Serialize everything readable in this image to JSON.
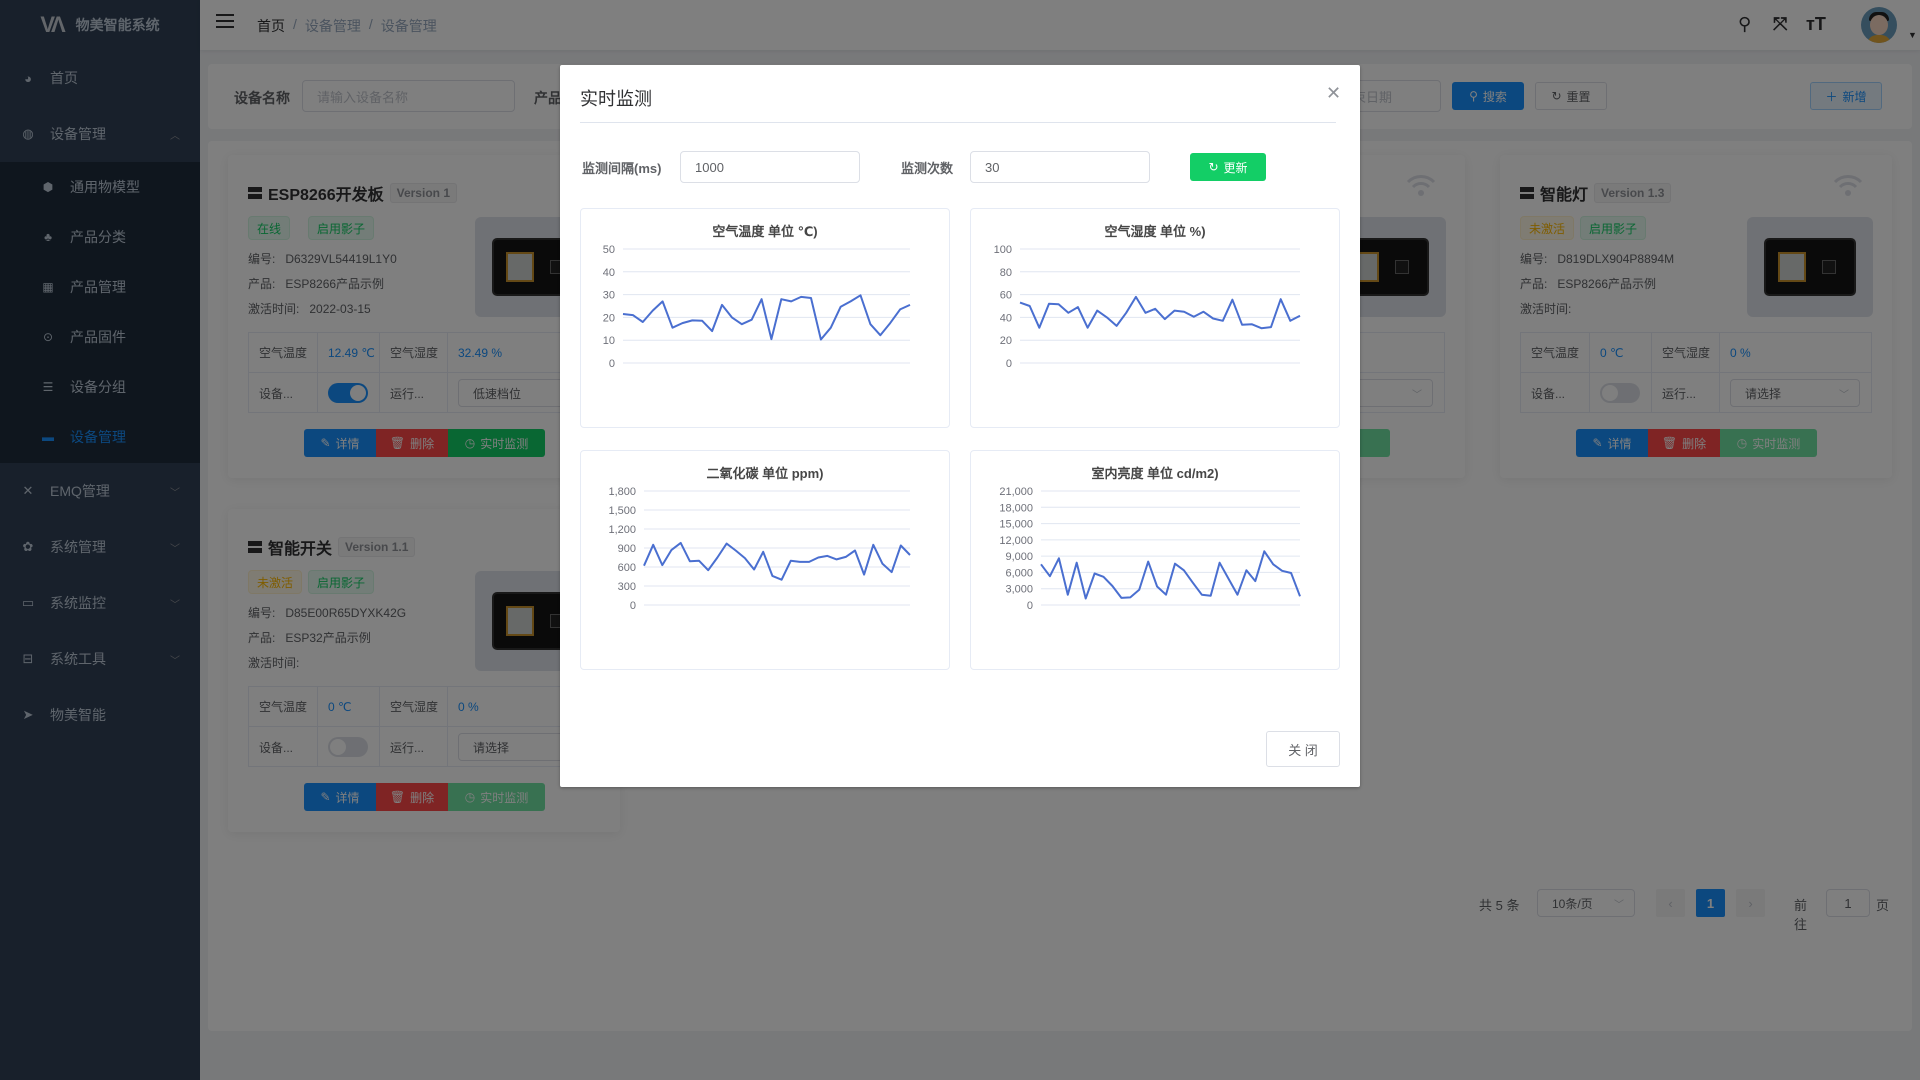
{
  "app": {
    "title": "物美智能系统",
    "logo_text": "WM"
  },
  "sidebar": {
    "items": [
      {
        "label": "首页",
        "icon": "dashboard-icon"
      },
      {
        "label": "设备管理",
        "icon": "iot-icon",
        "expanded": true
      },
      {
        "label": "EMQ管理",
        "icon": "network-icon"
      },
      {
        "label": "系统管理",
        "icon": "gear-icon"
      },
      {
        "label": "系统监控",
        "icon": "monitor-icon"
      },
      {
        "label": "系统工具",
        "icon": "toolbox-icon"
      },
      {
        "label": "物美智能",
        "icon": "paper-plane-icon"
      }
    ],
    "sub_items": [
      {
        "label": "通用物模型",
        "icon": "cube-icon"
      },
      {
        "label": "产品分类",
        "icon": "tree-icon"
      },
      {
        "label": "产品管理",
        "icon": "grid-icon"
      },
      {
        "label": "产品固件",
        "icon": "chip-icon"
      },
      {
        "label": "设备分组",
        "icon": "group-icon"
      },
      {
        "label": "设备管理",
        "icon": "server-icon",
        "active": true
      }
    ]
  },
  "navbar": {
    "breadcrumb": [
      "首页",
      "设备管理",
      "设备管理"
    ],
    "separator": "/"
  },
  "search": {
    "device_name_label": "设备名称",
    "device_name_placeholder": "请输入设备名称",
    "product_label": "产品",
    "date_placeholder_end": "束日期",
    "search_label": "搜索",
    "reset_label": "重置",
    "add_label": "新增"
  },
  "cards": [
    {
      "title": "ESP8266开发板",
      "version": "Version 1",
      "status": "在线",
      "status_color": "green",
      "shadow": "启用影子",
      "serial_label": "编号:",
      "serial": "D6329VL54419L1Y0",
      "product_label": "产品:",
      "product": "ESP8266产品示例",
      "activation_label": "激活时间:",
      "activation": "2022-03-15",
      "temp_label": "空气温度",
      "temp": "12.49 ℃",
      "hum_label": "空气湿度",
      "hum": "32.49 %",
      "switch_label": "设备...",
      "switch_on": true,
      "mode_label": "运行...",
      "mode": "低速档位",
      "detail": "详情",
      "delete": "删除",
      "monitor": "实时监测"
    },
    {
      "title": "",
      "version": "",
      "status": "",
      "status_color": "green",
      "shadow": "",
      "serial_label": "",
      "serial": "",
      "product_label": "",
      "product": "",
      "activation_label": "",
      "activation": "",
      "temp_label": "",
      "temp": "",
      "hum_label": "",
      "hum": "",
      "switch_label": "",
      "switch_on": false,
      "mode_label": "",
      "mode": "",
      "detail": "",
      "delete": "",
      "monitor": ""
    },
    {
      "title": "",
      "version": "",
      "status": "",
      "status_color": "green",
      "shadow": "",
      "serial_label": "",
      "serial": "",
      "product_label": "",
      "product": "",
      "activation_label": "",
      "activation": "",
      "temp_label": "",
      "temp": "",
      "hum_label": "",
      "hum": "",
      "switch_label": "",
      "switch_on": false,
      "mode_label": "",
      "mode": "",
      "detail": "",
      "delete": "",
      "monitor": "测"
    },
    {
      "title": "智能灯",
      "version": "Version 1.3",
      "status": "未激活",
      "status_color": "orange",
      "shadow": "启用影子",
      "serial_label": "编号:",
      "serial": "D819DLX904P8894M",
      "product_label": "产品:",
      "product": "ESP8266产品示例",
      "activation_label": "激活时间:",
      "activation": "",
      "temp_label": "空气温度",
      "temp": "0 ℃",
      "hum_label": "空气湿度",
      "hum": "0 %",
      "switch_label": "设备...",
      "switch_on": false,
      "mode_label": "运行...",
      "mode": "请选择",
      "detail": "详情",
      "delete": "删除",
      "monitor": "实时监测"
    },
    {
      "title": "智能开关",
      "version": "Version 1.1",
      "status": "未激活",
      "status_color": "orange",
      "shadow": "启用影子",
      "serial_label": "编号:",
      "serial": "D85E00R65DYXK42G",
      "product_label": "产品:",
      "product": "ESP32产品示例",
      "activation_label": "激活时间:",
      "activation": "",
      "temp_label": "空气温度",
      "temp": "0 ℃",
      "hum_label": "空气湿度",
      "hum": "0 %",
      "switch_label": "设备...",
      "switch_on": false,
      "mode_label": "运行...",
      "mode": "请选择",
      "detail": "详情",
      "delete": "删除",
      "monitor": "实时监测"
    }
  ],
  "pagination": {
    "total": "共 5 条",
    "page_size": "10条/页",
    "current": "1",
    "goto_label": "前往",
    "goto_value": "1",
    "page_unit": "页"
  },
  "modal": {
    "title": "实时监测",
    "interval_label": "监测间隔(ms)",
    "interval_value": "1000",
    "count_label": "监测次数",
    "count_value": "30",
    "update_label": "更新",
    "close_label": "关 闭"
  },
  "colors": {
    "primary": "#1890ff",
    "success": "#13ce66",
    "danger": "#ff4949",
    "warning": "#ffba00",
    "line": "#4a6fd0",
    "sidebar": "#304156"
  },
  "chart_data": [
    {
      "type": "line",
      "title": "空气温度 单位 ℃)",
      "ylim": [
        0,
        50
      ],
      "yticks": [
        0,
        10,
        20,
        30,
        40,
        50
      ],
      "grid": true,
      "values": [
        21.5,
        21,
        18,
        23,
        27,
        15.5,
        17.5,
        18.7,
        18.5,
        14,
        25.5,
        20,
        17,
        19,
        28,
        10.5,
        28,
        27,
        29,
        28.5,
        10.3,
        15.5,
        24.7,
        27,
        29.7,
        17,
        12.2,
        17.5,
        23.5,
        25.5
      ]
    },
    {
      "type": "line",
      "title": "空气湿度 单位 %)",
      "ylim": [
        0,
        100
      ],
      "yticks": [
        0,
        20,
        40,
        60,
        80,
        100
      ],
      "grid": true,
      "values": [
        53,
        50,
        31,
        52,
        51.5,
        44,
        49,
        31,
        46,
        40,
        32.5,
        44,
        58,
        44,
        47.5,
        38.5,
        46,
        45,
        40.5,
        45,
        39,
        37,
        55.5,
        33.5,
        34,
        30.5,
        31.5,
        56,
        37,
        41.5
      ]
    },
    {
      "type": "line",
      "title": "二氧化碳 单位 ppm)",
      "ylim": [
        0,
        1800
      ],
      "yticks": [
        0,
        300,
        600,
        900,
        1200,
        1500,
        1800
      ],
      "grid": true,
      "values": [
        620,
        950,
        630,
        870,
        980,
        690,
        700,
        550,
        750,
        970,
        860,
        740,
        560,
        840,
        460,
        400,
        700,
        680,
        680,
        750,
        775,
        720,
        760,
        860,
        480,
        950,
        650,
        520,
        940,
        790
      ]
    },
    {
      "type": "line",
      "title": "室内亮度 单位 cd/m2)",
      "ylim": [
        0,
        21000
      ],
      "yticks": [
        0,
        3000,
        6000,
        9000,
        12000,
        15000,
        18000,
        21000
      ],
      "grid": true,
      "values": [
        7500,
        5300,
        8600,
        1900,
        7800,
        1200,
        5800,
        5200,
        3500,
        1300,
        1400,
        2800,
        8000,
        3400,
        1900,
        7600,
        6400,
        4100,
        1900,
        1700,
        7800,
        4800,
        1900,
        6400,
        4400,
        9900,
        7500,
        6300,
        5900,
        1600
      ]
    }
  ]
}
